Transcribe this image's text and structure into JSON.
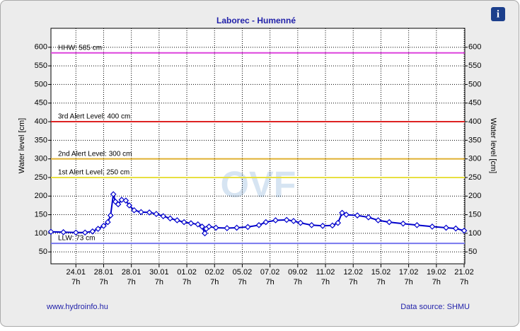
{
  "chart_data": {
    "type": "line",
    "title": "Laborec - Humenné",
    "ylabel": "Water level [cm]",
    "ylim": [
      18,
      651
    ],
    "yticks": [
      50,
      100,
      150,
      200,
      250,
      300,
      350,
      400,
      450,
      500,
      550,
      600
    ],
    "xlim": [
      -1.8,
      28.05
    ],
    "xticks": [
      {
        "value": 0,
        "label": "24.01"
      },
      {
        "value": 2,
        "label": "28.01"
      },
      {
        "value": 4,
        "label": "28.01"
      },
      {
        "value": 6,
        "label": "30.01"
      },
      {
        "value": 8,
        "label": "01.02"
      },
      {
        "value": 10,
        "label": "02.02"
      },
      {
        "value": 12,
        "label": "05.02"
      },
      {
        "value": 14,
        "label": "07.02"
      },
      {
        "value": 16,
        "label": "09.02"
      },
      {
        "value": 18,
        "label": "11.02"
      },
      {
        "value": 20,
        "label": "12.02"
      },
      {
        "value": 22,
        "label": "15.02"
      },
      {
        "value": 24,
        "label": "17.02"
      },
      {
        "value": 26,
        "label": "19.02"
      },
      {
        "value": 28,
        "label": "21.02"
      }
    ],
    "xtick_sublabel": "7h",
    "grid": true,
    "series": [
      {
        "color": "#0000cc",
        "x": [
          -1.8,
          -0.9,
          0,
          0.66,
          1.2,
          1.6,
          2,
          2.3,
          2.5,
          2.7,
          2.85,
          3.05,
          3.3,
          3.6,
          3.85,
          4.2,
          4.7,
          5.3,
          5.8,
          6.3,
          6.8,
          7.3,
          7.8,
          8.3,
          8.8,
          9.1,
          9.3,
          9.4,
          9.6,
          10.1,
          10.9,
          11.6,
          12.4,
          13.2,
          13.7,
          14.4,
          15.2,
          15.7,
          16.2,
          17,
          17.8,
          18.5,
          18.9,
          19.2,
          19.5,
          20.3,
          21.1,
          21.8,
          22.6,
          23.6,
          24.6,
          25.7,
          26.7,
          27.4,
          28
        ],
        "values": [
          104,
          103,
          102,
          102,
          105,
          112,
          120,
          130,
          148,
          205,
          185,
          178,
          190,
          188,
          175,
          162,
          157,
          156,
          152,
          146,
          140,
          135,
          130,
          127,
          124,
          118,
          100,
          112,
          118,
          115,
          114,
          115,
          117,
          122,
          130,
          135,
          136,
          133,
          128,
          122,
          120,
          121,
          128,
          155,
          150,
          148,
          143,
          135,
          130,
          126,
          122,
          118,
          115,
          113,
          107
        ]
      }
    ],
    "thresholds": [
      {
        "label": "HHW: 585 cm",
        "value": 585,
        "color": "#dd44dd"
      },
      {
        "label": "3rd Alert Level: 400 cm",
        "value": 400,
        "color": "#dd2222"
      },
      {
        "label": "2nd Alert Level: 300 cm",
        "value": 300,
        "color": "#e0b030"
      },
      {
        "label": "1st Alert Level: 250 cm",
        "value": 250,
        "color": "#e8e040"
      },
      {
        "label": "LLW: 73 cm",
        "value": 73,
        "color": "#7777ee"
      }
    ],
    "watermark": "OVF",
    "footer_left": "www.hydroinfo.hu",
    "footer_right": "Data source: SHMU"
  }
}
